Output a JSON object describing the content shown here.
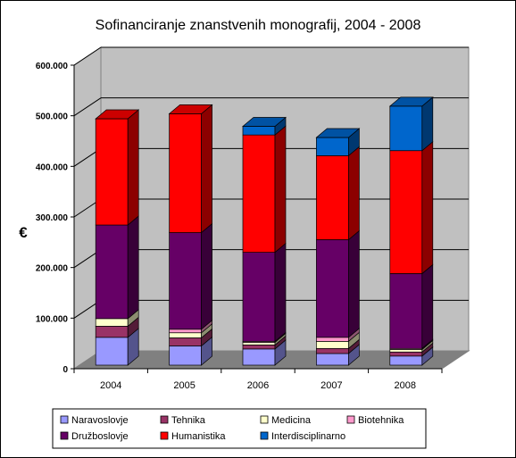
{
  "chart_data": {
    "type": "bar",
    "stacked": true,
    "three_d": true,
    "title": "Sofinanciranje znanstvenih monografij, 2004 - 2008",
    "xlabel": "",
    "ylabel": "€",
    "ylim": [
      0,
      600000
    ],
    "yticks": [
      "0",
      "100.000",
      "200.000",
      "300.000",
      "400.000",
      "500.000",
      "600.000"
    ],
    "categories": [
      "2004",
      "2005",
      "2006",
      "2007",
      "2008"
    ],
    "grid": true,
    "legend_position": "bottom",
    "series": [
      {
        "name": "Naravoslovje",
        "color": "#9999ff",
        "values": [
          55000,
          38000,
          32000,
          23000,
          18000
        ]
      },
      {
        "name": "Tehnika",
        "color": "#993366",
        "values": [
          22000,
          16000,
          8000,
          10000,
          8000
        ]
      },
      {
        "name": "Medicina",
        "color": "#ffffcc",
        "values": [
          15000,
          10000,
          5000,
          14000,
          5000
        ]
      },
      {
        "name": "Biotehnika",
        "color": "#ff99cc",
        "values": [
          0,
          7000,
          2000,
          8000,
          2000
        ]
      },
      {
        "name": "Družboslovje",
        "color": "#660066",
        "values": [
          185000,
          191000,
          176000,
          193000,
          148000
        ]
      },
      {
        "name": "Humanistika",
        "color": "#ff0000",
        "values": [
          210000,
          235000,
          232000,
          166000,
          243000
        ]
      },
      {
        "name": "Interdisciplinarno",
        "color": "#0066cc",
        "values": [
          0,
          0,
          17000,
          36000,
          88000
        ]
      }
    ]
  }
}
